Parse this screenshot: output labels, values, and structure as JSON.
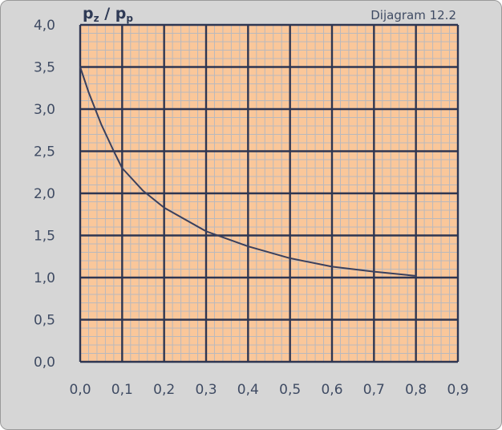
{
  "chart_data": {
    "type": "line",
    "title": "Dijagram 12.2",
    "ylabel": {
      "p1": "p",
      "s1": "z",
      "sep": " / ",
      "p2": "p",
      "s2": "p"
    },
    "xlabel": "",
    "xlim": [
      0,
      0.9
    ],
    "ylim": [
      0,
      4.0
    ],
    "x_ticks": [
      {
        "value": 0.0,
        "label": "0,0"
      },
      {
        "value": 0.1,
        "label": "0,1"
      },
      {
        "value": 0.2,
        "label": "0,2"
      },
      {
        "value": 0.3,
        "label": "0,3"
      },
      {
        "value": 0.4,
        "label": "0,4"
      },
      {
        "value": 0.5,
        "label": "0,5"
      },
      {
        "value": 0.6,
        "label": "0,6"
      },
      {
        "value": 0.7,
        "label": "0,7"
      },
      {
        "value": 0.8,
        "label": "0,8"
      },
      {
        "value": 0.9,
        "label": "0,9"
      }
    ],
    "y_ticks": [
      {
        "value": 0.0,
        "label": "0,0"
      },
      {
        "value": 0.5,
        "label": "0,5"
      },
      {
        "value": 1.0,
        "label": "1,0"
      },
      {
        "value": 1.5,
        "label": "1,5"
      },
      {
        "value": 2.0,
        "label": "2,0"
      },
      {
        "value": 2.5,
        "label": "2,5"
      },
      {
        "value": 3.0,
        "label": "3,0"
      },
      {
        "value": 3.5,
        "label": "3,5"
      },
      {
        "value": 4.0,
        "label": "4,0"
      }
    ],
    "grid": true,
    "series": [
      {
        "x": [
          0.0,
          0.02,
          0.05,
          0.08,
          0.1,
          0.15,
          0.2,
          0.3,
          0.4,
          0.5,
          0.6,
          0.7,
          0.8
        ],
        "y": [
          3.5,
          3.2,
          2.82,
          2.5,
          2.3,
          2.03,
          1.83,
          1.55,
          1.37,
          1.23,
          1.13,
          1.07,
          1.02
        ]
      }
    ],
    "colors": {
      "plot_bg": "#fac79a",
      "grid_major": "#2e3652",
      "grid_minor": "#b9b9bd",
      "curve": "#39405e",
      "frame_bg": "#d6d6d6"
    }
  }
}
